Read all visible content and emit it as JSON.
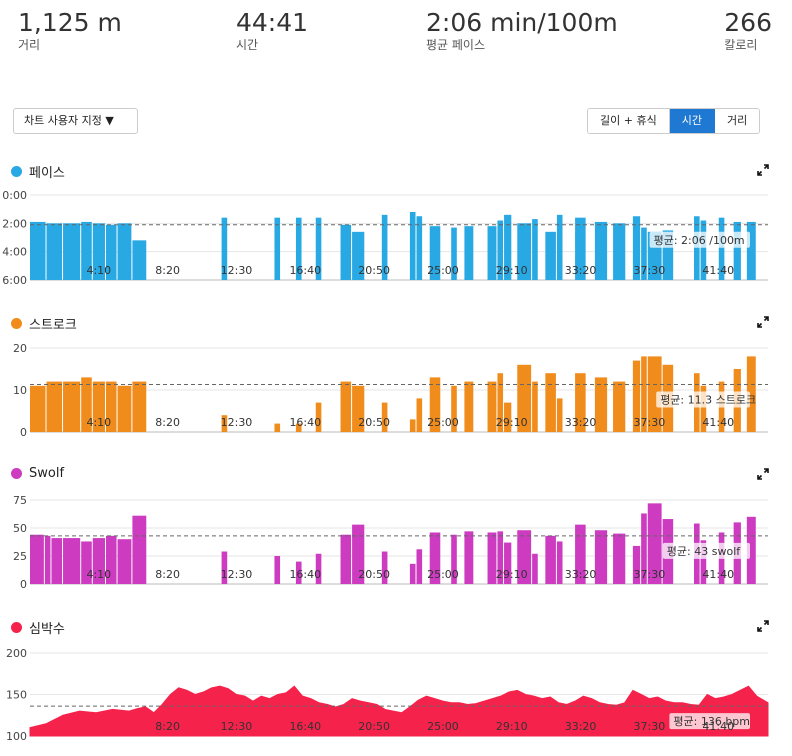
{
  "summary": [
    {
      "value": "1,125 m",
      "label": "거리"
    },
    {
      "value": "44:41",
      "label": "시간"
    },
    {
      "value": "2:06 min/100m",
      "label": "평균 페이스"
    },
    {
      "value": "266",
      "label": "칼로리"
    }
  ],
  "controls": {
    "customize_label": "차트 사용자 지정 ▼",
    "toggle": [
      "길이 + 휴식",
      "시간",
      "거리"
    ],
    "toggle_selected": "시간"
  },
  "icons": {
    "expand": "expand-icon",
    "dropdown": "triangle-down-icon"
  },
  "colors": {
    "pace": "#29a9e4",
    "stroke": "#f08c1c",
    "swolf": "#cc3bc0",
    "hr": "#f5224b",
    "toggle_active": "#1f78d1"
  },
  "chart_data": [
    {
      "type": "bar",
      "title": "페이스",
      "x_tick_labels": [
        "4:10",
        "8:20",
        "12:30",
        "16:40",
        "20:50",
        "25:00",
        "29:10",
        "33:20",
        "37:30",
        "41:40"
      ],
      "y_tick_labels": [
        "0:00",
        "2:00",
        "4:00",
        "6:00"
      ],
      "ylim": [
        6,
        0
      ],
      "y_inverted": true,
      "xlim": [
        0,
        44.68
      ],
      "average": 2.1,
      "average_label": "평균: 2:06 /100m",
      "segments": [
        [
          0.0,
          1.0,
          1.9
        ],
        [
          1.0,
          2.0,
          2.0
        ],
        [
          2.0,
          3.1,
          2.0
        ],
        [
          3.1,
          3.8,
          1.9
        ],
        [
          3.8,
          4.6,
          2.0
        ],
        [
          4.6,
          5.3,
          2.1
        ],
        [
          5.3,
          6.2,
          2.0
        ],
        [
          6.2,
          7.1,
          3.2
        ],
        [
          11.6,
          12.0,
          1.6
        ],
        [
          14.8,
          15.2,
          1.6
        ],
        [
          16.1,
          16.5,
          1.6
        ],
        [
          17.3,
          17.7,
          1.6
        ],
        [
          18.8,
          19.5,
          2.1
        ],
        [
          19.5,
          20.3,
          2.6
        ],
        [
          21.3,
          21.7,
          1.4
        ],
        [
          23.0,
          23.4,
          1.2
        ],
        [
          23.4,
          23.8,
          1.5
        ],
        [
          24.2,
          24.9,
          2.2
        ],
        [
          25.5,
          25.9,
          2.3
        ],
        [
          26.3,
          26.9,
          2.2
        ],
        [
          27.7,
          28.3,
          2.2
        ],
        [
          28.3,
          28.7,
          1.8
        ],
        [
          28.7,
          29.2,
          1.4
        ],
        [
          29.5,
          30.4,
          2.0
        ],
        [
          30.4,
          30.8,
          1.7
        ],
        [
          31.2,
          31.9,
          2.6
        ],
        [
          31.9,
          32.3,
          1.4
        ],
        [
          33.0,
          33.7,
          1.6
        ],
        [
          34.2,
          35.0,
          1.9
        ],
        [
          35.3,
          36.1,
          2.0
        ],
        [
          36.5,
          37.0,
          1.5
        ],
        [
          37.0,
          37.4,
          2.3
        ],
        [
          37.4,
          38.3,
          2.6
        ],
        [
          38.3,
          39.0,
          2.5
        ],
        [
          40.2,
          40.6,
          1.5
        ],
        [
          40.6,
          41.0,
          1.8
        ],
        [
          41.7,
          42.1,
          1.6
        ],
        [
          42.6,
          43.1,
          1.9
        ],
        [
          43.4,
          44.0,
          1.9
        ]
      ]
    },
    {
      "type": "bar",
      "title": "스트로크",
      "x_tick_labels": [
        "4:10",
        "8:20",
        "12:30",
        "16:40",
        "20:50",
        "25:00",
        "29:10",
        "33:20",
        "37:30",
        "41:40"
      ],
      "y_tick_labels": [
        "0",
        "10",
        "20"
      ],
      "ylim": [
        0,
        20
      ],
      "xlim": [
        0,
        44.68
      ],
      "average": 11.3,
      "average_label": "평균: 11.3 스트로크",
      "segments": [
        [
          0.0,
          1.0,
          11
        ],
        [
          1.0,
          2.0,
          12
        ],
        [
          2.0,
          3.1,
          12
        ],
        [
          3.1,
          3.8,
          13
        ],
        [
          3.8,
          4.6,
          12
        ],
        [
          4.6,
          5.3,
          12
        ],
        [
          5.3,
          6.2,
          11
        ],
        [
          6.2,
          7.1,
          12
        ],
        [
          11.6,
          12.0,
          4
        ],
        [
          14.8,
          15.2,
          2
        ],
        [
          16.1,
          16.5,
          2
        ],
        [
          17.3,
          17.7,
          7
        ],
        [
          18.8,
          19.5,
          12
        ],
        [
          19.5,
          20.3,
          11
        ],
        [
          21.3,
          21.7,
          7
        ],
        [
          23.0,
          23.4,
          3
        ],
        [
          23.4,
          23.8,
          8
        ],
        [
          24.2,
          24.9,
          13
        ],
        [
          25.5,
          25.9,
          11
        ],
        [
          26.3,
          26.9,
          12
        ],
        [
          27.7,
          28.3,
          12
        ],
        [
          28.3,
          28.7,
          14
        ],
        [
          28.7,
          29.2,
          7
        ],
        [
          29.5,
          30.4,
          16
        ],
        [
          30.4,
          30.8,
          12
        ],
        [
          31.2,
          31.9,
          14
        ],
        [
          31.9,
          32.3,
          8
        ],
        [
          33.0,
          33.7,
          14
        ],
        [
          34.2,
          35.0,
          13
        ],
        [
          35.3,
          36.1,
          12
        ],
        [
          36.5,
          37.0,
          17
        ],
        [
          37.0,
          37.4,
          18
        ],
        [
          37.4,
          38.3,
          18
        ],
        [
          38.3,
          39.0,
          16
        ],
        [
          40.2,
          40.6,
          14
        ],
        [
          40.6,
          41.0,
          11
        ],
        [
          41.7,
          42.1,
          12
        ],
        [
          42.6,
          43.1,
          15
        ],
        [
          43.4,
          44.0,
          18
        ]
      ]
    },
    {
      "type": "bar",
      "title": "Swolf",
      "x_tick_labels": [
        "4:10",
        "8:20",
        "12:30",
        "16:40",
        "20:50",
        "25:00",
        "29:10",
        "33:20",
        "37:30",
        "41:40"
      ],
      "y_tick_labels": [
        "0",
        "25",
        "50",
        "75"
      ],
      "ylim": [
        0,
        75
      ],
      "xlim": [
        0,
        44.68
      ],
      "average": 43,
      "average_label": "평균: 43 swolf",
      "segments": [
        [
          0.0,
          0.9,
          44
        ],
        [
          0.9,
          1.3,
          43
        ],
        [
          1.3,
          2.0,
          41
        ],
        [
          2.0,
          3.1,
          41
        ],
        [
          3.1,
          3.8,
          38
        ],
        [
          3.8,
          4.6,
          41
        ],
        [
          4.6,
          5.3,
          43
        ],
        [
          5.3,
          6.2,
          40
        ],
        [
          6.2,
          7.1,
          61
        ],
        [
          11.6,
          12.0,
          29
        ],
        [
          14.8,
          15.2,
          25
        ],
        [
          16.1,
          16.5,
          20
        ],
        [
          17.3,
          17.7,
          27
        ],
        [
          18.8,
          19.5,
          44
        ],
        [
          19.5,
          20.3,
          53
        ],
        [
          21.3,
          21.7,
          29
        ],
        [
          23.0,
          23.4,
          18
        ],
        [
          23.4,
          23.8,
          31
        ],
        [
          24.2,
          24.9,
          46
        ],
        [
          25.5,
          25.9,
          44
        ],
        [
          26.3,
          26.9,
          47
        ],
        [
          27.7,
          28.3,
          46
        ],
        [
          28.3,
          28.7,
          47
        ],
        [
          28.7,
          29.2,
          37
        ],
        [
          29.5,
          30.4,
          48
        ],
        [
          30.4,
          30.8,
          27
        ],
        [
          31.2,
          31.9,
          43
        ],
        [
          31.9,
          32.3,
          38
        ],
        [
          33.0,
          33.7,
          53
        ],
        [
          34.2,
          35.0,
          48
        ],
        [
          35.3,
          36.1,
          45
        ],
        [
          36.5,
          37.0,
          34
        ],
        [
          37.0,
          37.4,
          63
        ],
        [
          37.4,
          38.3,
          72
        ],
        [
          38.3,
          39.0,
          58
        ],
        [
          40.2,
          40.6,
          54
        ],
        [
          40.6,
          41.0,
          39
        ],
        [
          41.7,
          42.1,
          46
        ],
        [
          42.6,
          43.1,
          55
        ],
        [
          43.4,
          44.0,
          60
        ]
      ]
    },
    {
      "type": "area",
      "title": "심박수",
      "x_tick_labels": [
        "8:20",
        "12:30",
        "16:40",
        "20:50",
        "25:00",
        "29:10",
        "33:20",
        "37:30",
        "41:40"
      ],
      "y_tick_labels": [
        "100",
        "150",
        "200"
      ],
      "ylim": [
        100,
        200
      ],
      "xlim": [
        0,
        44.68
      ],
      "average": 136,
      "average_label": "평균: 136 bpm",
      "x_minutes": [
        0,
        1,
        2,
        3,
        4,
        5,
        6,
        6.5,
        7,
        7.5,
        8,
        8.5,
        9,
        9.5,
        10,
        10.5,
        11,
        11.5,
        12,
        12.5,
        13,
        13.5,
        14,
        14.5,
        15,
        15.5,
        16,
        16.5,
        17,
        17.5,
        18,
        18.5,
        19,
        19.5,
        20,
        20.5,
        21,
        21.5,
        22,
        22.5,
        23,
        23.5,
        24,
        24.5,
        25,
        25.5,
        26,
        26.5,
        27,
        27.5,
        28,
        28.5,
        29,
        29.5,
        30,
        30.5,
        31,
        31.5,
        32,
        32.5,
        33,
        33.5,
        34,
        34.5,
        35,
        35.5,
        36,
        36.5,
        37,
        37.5,
        38,
        38.5,
        39,
        39.5,
        40,
        40.5,
        41,
        41.5,
        42,
        42.5,
        43,
        43.5,
        44,
        44.68
      ],
      "values": [
        110,
        115,
        125,
        130,
        128,
        132,
        130,
        133,
        135,
        128,
        138,
        150,
        158,
        155,
        150,
        153,
        158,
        160,
        157,
        150,
        148,
        142,
        148,
        145,
        150,
        152,
        160,
        148,
        145,
        140,
        138,
        135,
        138,
        145,
        142,
        140,
        138,
        132,
        130,
        128,
        135,
        143,
        148,
        145,
        142,
        140,
        140,
        138,
        139,
        142,
        145,
        148,
        153,
        155,
        150,
        148,
        145,
        147,
        140,
        138,
        142,
        148,
        145,
        140,
        138,
        137,
        140,
        155,
        150,
        145,
        147,
        142,
        140,
        140,
        138,
        137,
        150,
        145,
        147,
        150,
        155,
        160,
        148,
        140
      ]
    }
  ]
}
